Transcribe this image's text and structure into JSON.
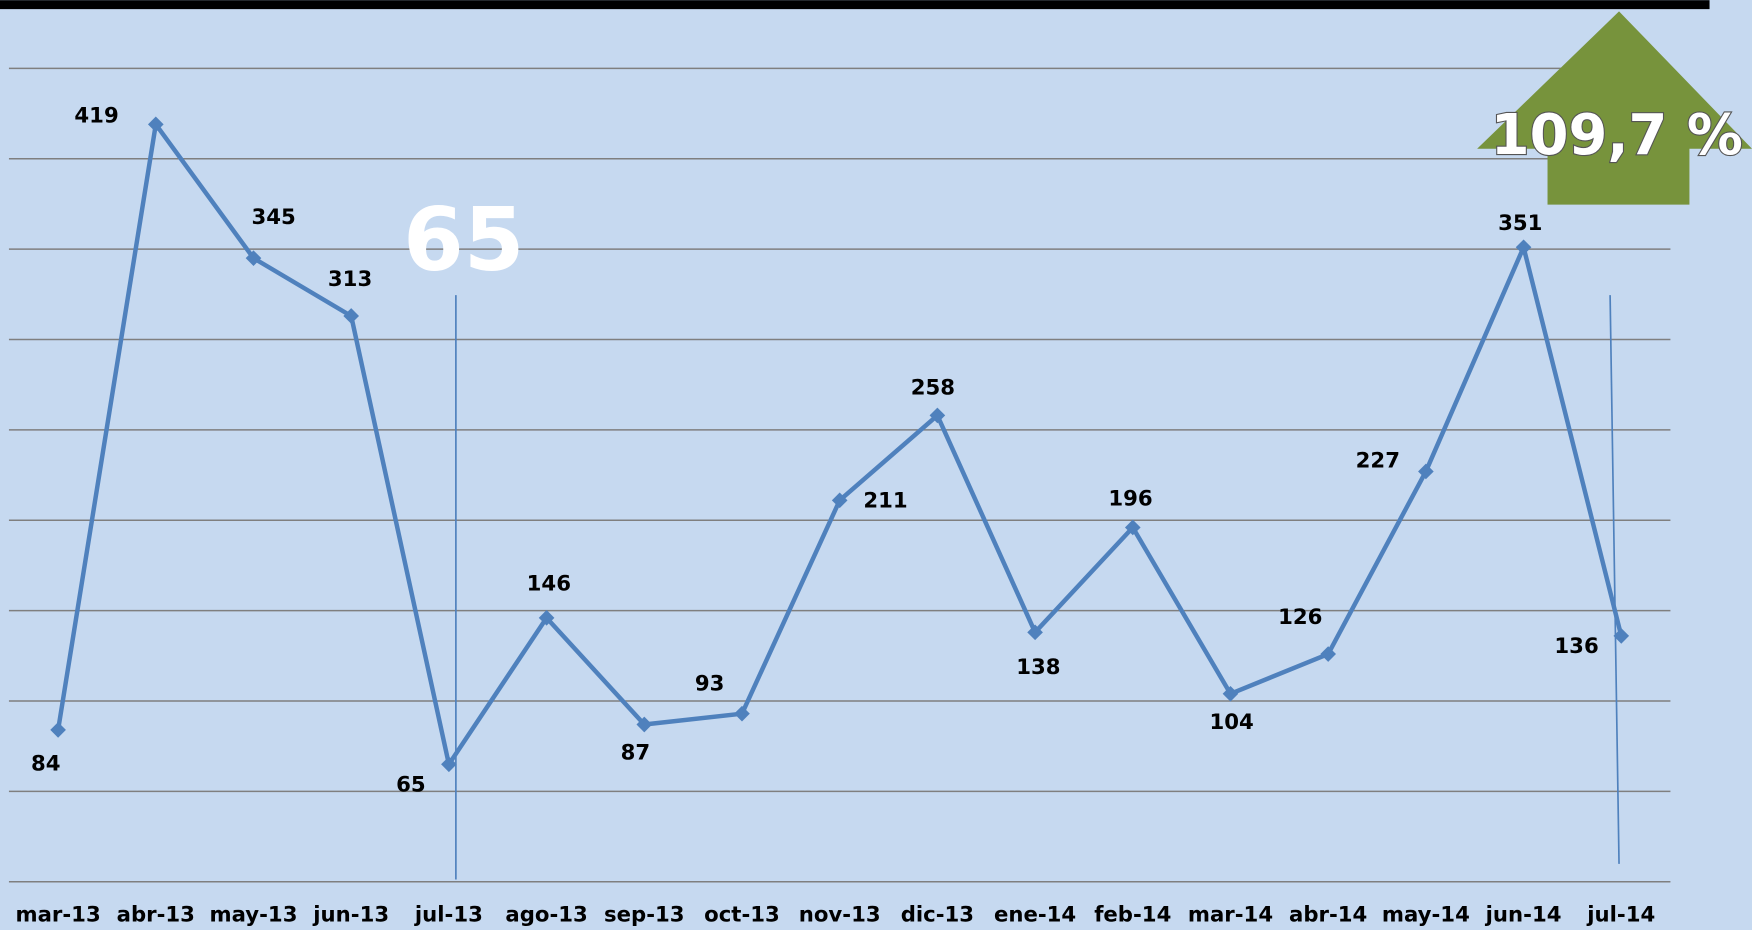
{
  "chart_data": {
    "type": "line",
    "categories": [
      "mar-13",
      "abr-13",
      "may-13",
      "jun-13",
      "jul-13",
      "ago-13",
      "sep-13",
      "oct-13",
      "nov-13",
      "dic-13",
      "ene-14",
      "feb-14",
      "mar-14",
      "abr-14",
      "may-14",
      "jun-14",
      "jul-14"
    ],
    "series": [
      {
        "color": "#4f81bd",
        "values": [
          84,
          419,
          345,
          313,
          65,
          146,
          87,
          93,
          211,
          258,
          138,
          196,
          104,
          126,
          227,
          351,
          136
        ]
      }
    ],
    "ylim": [
      0,
      450
    ],
    "yticks": [
      0,
      50,
      100,
      150,
      200,
      250,
      300,
      350,
      400,
      450
    ],
    "grid": true,
    "annotations": [
      "65",
      "109,7 %"
    ]
  }
}
